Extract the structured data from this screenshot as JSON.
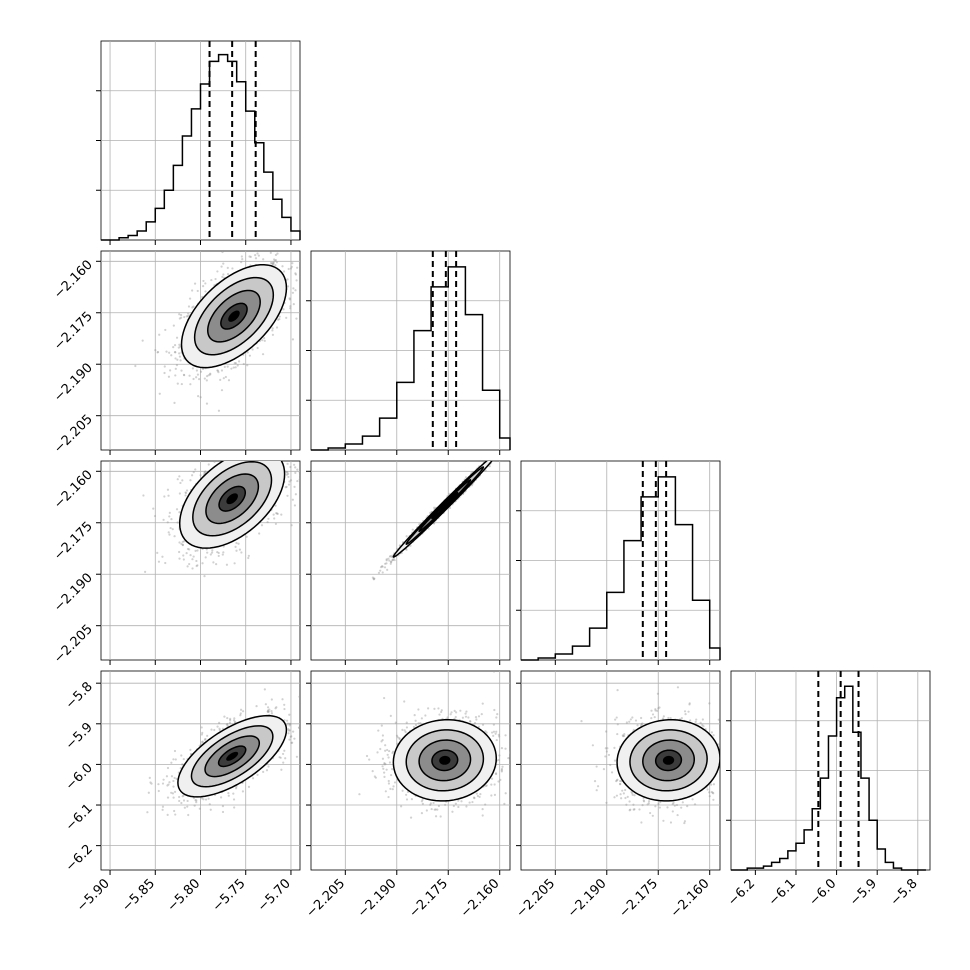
{
  "chart_data": {
    "type": "corner",
    "n_params": 4,
    "style": {
      "line_color": "#000000",
      "grid_color": "#b0b0b0",
      "sample_color": "#9a9a9a",
      "fill_colors": [
        "#f0f0f0",
        "#c8c8c8",
        "#8c8c8c",
        "#3c3c3c"
      ]
    },
    "params": [
      {
        "range": [
          -5.91,
          -5.69
        ],
        "ticks": [
          -5.9,
          -5.85,
          -5.8,
          -5.75,
          -5.7
        ],
        "tick_labels": [
          "−5.90",
          "−5.85",
          "−5.80",
          "−5.75",
          "−5.70"
        ],
        "quantiles": [
          -5.79,
          -5.765,
          -5.739
        ],
        "hist_x": [
          -5.91,
          -5.9,
          -5.89,
          -5.88,
          -5.87,
          -5.86,
          -5.85,
          -5.84,
          -5.83,
          -5.82,
          -5.81,
          -5.8,
          -5.79,
          -5.78,
          -5.77,
          -5.76,
          -5.75,
          -5.74,
          -5.73,
          -5.72,
          -5.71,
          -5.7,
          -5.69
        ],
        "hist_y": [
          0,
          0,
          1,
          2,
          4,
          8,
          14,
          22,
          33,
          46,
          58,
          69,
          79,
          82,
          79,
          70,
          57,
          43,
          30,
          18,
          10,
          4,
          1
        ],
        "hist_ylim": [
          0,
          88
        ]
      },
      {
        "range": [
          -2.215,
          -2.157
        ],
        "ticks": [
          -2.205,
          -2.19,
          -2.175,
          -2.16
        ],
        "tick_labels": [
          "−2.205",
          "−2.190",
          "−2.175",
          "−2.160"
        ],
        "quantiles": [
          -2.1795,
          -2.1757,
          -2.1727
        ],
        "hist_x": [
          -2.215,
          -2.21,
          -2.205,
          -2.2,
          -2.195,
          -2.19,
          -2.185,
          -2.18,
          -2.175,
          -2.17,
          -2.165,
          -2.16,
          -2.157
        ],
        "hist_y": [
          0,
          1,
          3,
          7,
          16,
          34,
          60,
          82,
          92,
          68,
          30,
          6,
          1
        ],
        "hist_ylim": [
          0,
          100
        ]
      },
      {
        "range": [
          -2.215,
          -2.157
        ],
        "ticks": [
          -2.205,
          -2.19,
          -2.175,
          -2.16
        ],
        "tick_labels": [
          "−2.205",
          "−2.190",
          "−2.175",
          "−2.160"
        ],
        "quantiles": [
          -2.1795,
          -2.1757,
          -2.1727
        ],
        "hist_x": [
          -2.215,
          -2.21,
          -2.205,
          -2.2,
          -2.195,
          -2.19,
          -2.185,
          -2.18,
          -2.175,
          -2.17,
          -2.165,
          -2.16,
          -2.157
        ],
        "hist_y": [
          0,
          1,
          3,
          7,
          16,
          34,
          60,
          82,
          92,
          68,
          30,
          6,
          1
        ],
        "hist_ylim": [
          0,
          100
        ]
      },
      {
        "range": [
          -6.26,
          -5.77
        ],
        "ticks": [
          -6.2,
          -6.1,
          -6.0,
          -5.9,
          -5.8
        ],
        "tick_labels": [
          "−6.2",
          "−6.1",
          "−6.0",
          "−5.9",
          "−5.8"
        ],
        "quantiles": [
          -6.045,
          -5.99,
          -5.946
        ],
        "hist_x": [
          -6.26,
          -6.24,
          -6.22,
          -6.2,
          -6.18,
          -6.16,
          -6.14,
          -6.12,
          -6.1,
          -6.08,
          -6.06,
          -6.04,
          -6.02,
          -6.0,
          -5.98,
          -5.96,
          -5.94,
          -5.92,
          -5.9,
          -5.88,
          -5.86,
          -5.84,
          -5.82,
          -5.8,
          -5.78
        ],
        "hist_y": [
          0,
          0,
          1,
          1,
          2,
          4,
          6,
          10,
          14,
          21,
          32,
          48,
          70,
          90,
          96,
          72,
          48,
          26,
          11,
          4,
          1,
          0,
          0,
          0,
          0
        ],
        "hist_ylim": [
          0,
          104
        ]
      }
    ],
    "pairs": [
      {
        "row": 1,
        "col": 0,
        "center": [
          -5.763,
          -2.176
        ],
        "sigma": [
          0.029,
          0.0075
        ],
        "rho": 0.55
      },
      {
        "row": 2,
        "col": 0,
        "center": [
          -5.765,
          -2.168
        ],
        "sigma": [
          0.029,
          0.0072
        ],
        "rho": 0.5
      },
      {
        "row": 2,
        "col": 1,
        "center": [
          -2.176,
          -2.17
        ],
        "sigma": [
          0.0075,
          0.0075
        ],
        "rho": 0.995
      },
      {
        "row": 3,
        "col": 0,
        "center": [
          -5.765,
          -5.98
        ],
        "sigma": [
          0.03,
          0.05
        ],
        "rho": 0.65
      },
      {
        "row": 3,
        "col": 1,
        "center": [
          -2.176,
          -5.99
        ],
        "sigma": [
          0.0075,
          0.05
        ],
        "rho": 0.05
      },
      {
        "row": 3,
        "col": 2,
        "center": [
          -2.172,
          -5.99
        ],
        "sigma": [
          0.0075,
          0.05
        ],
        "rho": 0.05
      }
    ],
    "contour_levels_sigma": [
      0.5,
      1.0,
      1.5,
      2.0
    ],
    "grid": true,
    "legend": "none"
  }
}
